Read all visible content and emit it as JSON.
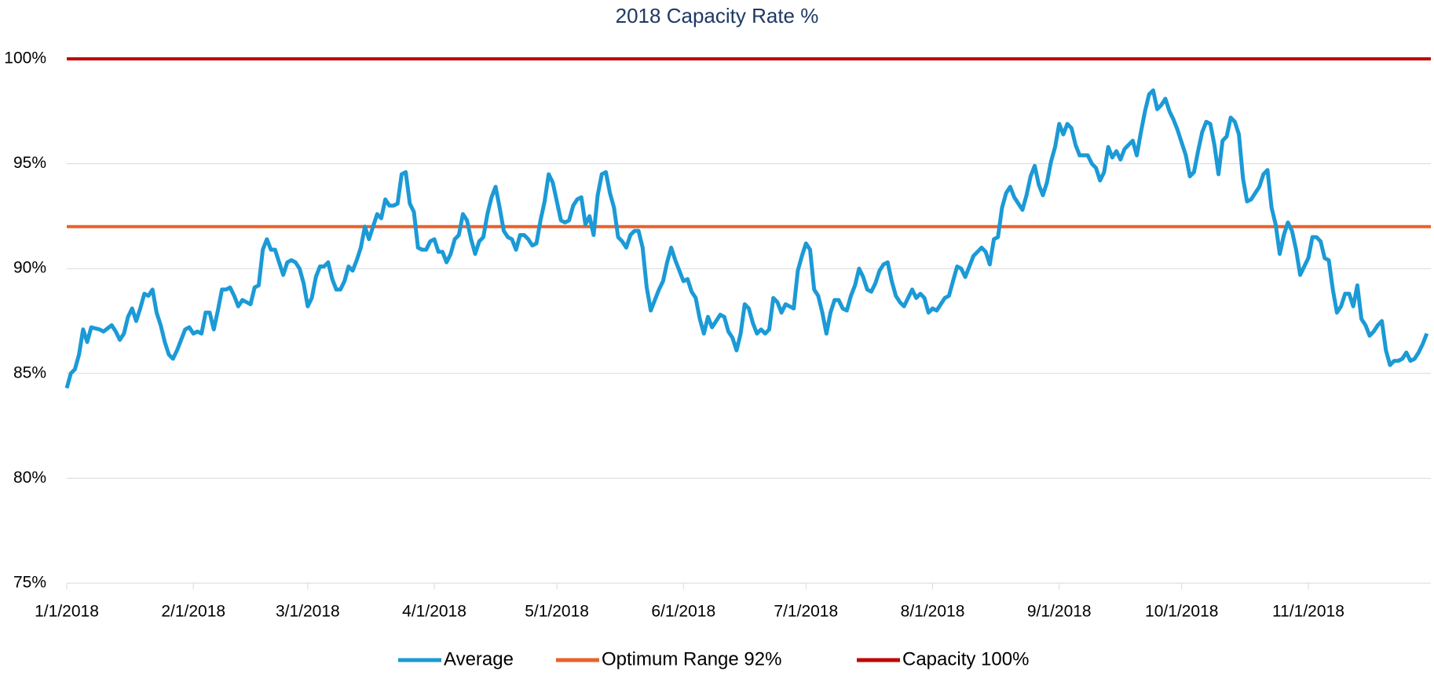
{
  "chart_data": {
    "type": "line",
    "title": "2018 Capacity Rate %",
    "x": [
      "1/1/2018",
      "1/2/2018",
      "1/3/2018",
      "1/4/2018",
      "1/5/2018",
      "1/6/2018",
      "1/7/2018",
      "1/9/2018",
      "1/10/2018",
      "1/12/2018",
      "1/13/2018",
      "1/14/2018",
      "1/15/2018",
      "1/16/2018",
      "1/17/2018",
      "1/18/2018",
      "1/19/2018",
      "1/20/2018",
      "1/21/2018",
      "1/22/2018",
      "1/23/2018",
      "1/24/2018",
      "1/25/2018",
      "1/26/2018",
      "1/27/2018",
      "1/28/2018",
      "1/29/2018",
      "1/30/2018",
      "1/31/2018",
      "2/1/2018",
      "2/2/2018",
      "2/3/2018",
      "2/4/2018",
      "2/5/2018",
      "2/6/2018",
      "2/7/2018",
      "2/8/2018",
      "2/9/2018",
      "2/10/2018",
      "2/11/2018",
      "2/12/2018",
      "2/13/2018",
      "2/14/2018",
      "2/15/2018",
      "2/16/2018",
      "2/17/2018",
      "2/18/2018",
      "2/19/2018",
      "2/20/2018",
      "2/21/2018",
      "2/22/2018",
      "2/23/2018",
      "2/24/2018",
      "2/25/2018",
      "2/26/2018",
      "2/27/2018",
      "2/28/2018",
      "3/1/2018",
      "3/2/2018",
      "3/3/2018",
      "3/4/2018",
      "3/5/2018",
      "3/6/2018",
      "3/7/2018",
      "3/8/2018",
      "3/9/2018",
      "3/10/2018",
      "3/11/2018",
      "3/12/2018",
      "3/13/2018",
      "3/14/2018",
      "3/15/2018",
      "3/16/2018",
      "3/17/2018",
      "3/18/2018",
      "3/19/2018",
      "3/20/2018",
      "3/21/2018",
      "3/22/2018",
      "3/23/2018",
      "3/24/2018",
      "3/25/2018",
      "3/26/2018",
      "3/27/2018",
      "3/28/2018",
      "3/29/2018",
      "3/30/2018",
      "3/31/2018",
      "4/1/2018",
      "4/2/2018",
      "4/3/2018",
      "4/4/2018",
      "4/5/2018",
      "4/6/2018",
      "4/7/2018",
      "4/8/2018",
      "4/9/2018",
      "4/10/2018",
      "4/11/2018",
      "4/12/2018",
      "4/13/2018",
      "4/14/2018",
      "4/15/2018",
      "4/16/2018",
      "4/17/2018",
      "4/18/2018",
      "4/19/2018",
      "4/20/2018",
      "4/21/2018",
      "4/22/2018",
      "4/23/2018",
      "4/24/2018",
      "4/25/2018",
      "4/26/2018",
      "4/27/2018",
      "4/28/2018",
      "4/29/2018",
      "4/30/2018",
      "5/1/2018",
      "5/2/2018",
      "5/3/2018",
      "5/4/2018",
      "5/5/2018",
      "5/6/2018",
      "5/7/2018",
      "5/8/2018",
      "5/9/2018",
      "5/10/2018",
      "5/11/2018",
      "5/12/2018",
      "5/13/2018",
      "5/14/2018",
      "5/15/2018",
      "5/16/2018",
      "5/17/2018",
      "5/18/2018",
      "5/19/2018",
      "5/20/2018",
      "5/21/2018",
      "5/22/2018",
      "5/23/2018",
      "5/24/2018",
      "5/25/2018",
      "5/26/2018",
      "5/27/2018",
      "5/28/2018",
      "5/29/2018",
      "5/30/2018",
      "5/31/2018",
      "6/1/2018",
      "6/2/2018",
      "6/3/2018",
      "6/4/2018",
      "6/5/2018",
      "6/6/2018",
      "6/7/2018",
      "6/8/2018",
      "6/9/2018",
      "6/10/2018",
      "6/11/2018",
      "6/12/2018",
      "6/13/2018",
      "6/14/2018",
      "6/15/2018",
      "6/16/2018",
      "6/17/2018",
      "6/18/2018",
      "6/19/2018",
      "6/20/2018",
      "6/21/2018",
      "6/22/2018",
      "6/23/2018",
      "6/24/2018",
      "6/25/2018",
      "6/26/2018",
      "6/27/2018",
      "6/28/2018",
      "6/29/2018",
      "6/30/2018",
      "7/1/2018",
      "7/2/2018",
      "7/3/2018",
      "7/4/2018",
      "7/5/2018",
      "7/6/2018",
      "7/7/2018",
      "7/8/2018",
      "7/9/2018",
      "7/10/2018",
      "7/11/2018",
      "7/12/2018",
      "7/13/2018",
      "7/14/2018",
      "7/15/2018",
      "7/16/2018",
      "7/17/2018",
      "7/18/2018",
      "7/19/2018",
      "7/20/2018",
      "7/21/2018",
      "7/22/2018",
      "7/23/2018",
      "7/24/2018",
      "7/25/2018",
      "7/26/2018",
      "7/27/2018",
      "7/28/2018",
      "7/29/2018",
      "7/30/2018",
      "7/31/2018",
      "8/1/2018",
      "8/2/2018",
      "8/3/2018",
      "8/4/2018",
      "8/5/2018",
      "8/6/2018",
      "8/7/2018",
      "8/8/2018",
      "8/9/2018",
      "8/10/2018",
      "8/11/2018",
      "8/12/2018",
      "8/13/2018",
      "8/14/2018",
      "8/15/2018",
      "8/16/2018",
      "8/17/2018",
      "8/18/2018",
      "8/19/2018",
      "8/20/2018",
      "8/21/2018",
      "8/22/2018",
      "8/23/2018",
      "8/24/2018",
      "8/25/2018",
      "8/26/2018",
      "8/27/2018",
      "8/28/2018",
      "8/29/2018",
      "8/30/2018",
      "8/31/2018",
      "9/1/2018",
      "9/2/2018",
      "9/3/2018",
      "9/4/2018",
      "9/5/2018",
      "9/6/2018",
      "9/7/2018",
      "9/8/2018",
      "9/9/2018",
      "9/10/2018",
      "9/11/2018",
      "9/12/2018",
      "9/13/2018",
      "9/14/2018",
      "9/15/2018",
      "9/16/2018",
      "9/17/2018",
      "9/18/2018",
      "9/19/2018",
      "9/20/2018",
      "9/21/2018",
      "9/22/2018",
      "9/23/2018",
      "9/24/2018",
      "9/25/2018",
      "9/26/2018",
      "9/27/2018",
      "9/28/2018",
      "9/29/2018",
      "9/30/2018",
      "10/1/2018",
      "10/2/2018",
      "10/3/2018",
      "10/4/2018",
      "10/5/2018",
      "10/6/2018",
      "10/7/2018",
      "10/8/2018",
      "10/9/2018",
      "10/10/2018",
      "10/11/2018",
      "10/12/2018",
      "10/13/2018",
      "10/14/2018",
      "10/15/2018",
      "10/16/2018",
      "10/17/2018",
      "10/18/2018",
      "10/19/2018",
      "10/20/2018",
      "10/21/2018",
      "10/22/2018",
      "10/23/2018",
      "10/24/2018",
      "10/25/2018",
      "10/26/2018",
      "10/27/2018",
      "10/28/2018",
      "10/29/2018",
      "10/30/2018",
      "10/31/2018",
      "11/1/2018",
      "11/2/2018",
      "11/3/2018",
      "11/4/2018",
      "11/5/2018",
      "11/6/2018",
      "11/7/2018",
      "11/8/2018",
      "11/9/2018",
      "11/10/2018",
      "11/11/2018",
      "11/12/2018",
      "11/13/2018",
      "11/14/2018",
      "11/15/2018",
      "11/16/2018",
      "11/17/2018",
      "11/18/2018",
      "11/19/2018",
      "11/20/2018",
      "11/21/2018",
      "11/22/2018",
      "11/23/2018",
      "11/24/2018",
      "11/25/2018",
      "11/26/2018",
      "11/27/2018",
      "11/28/2018",
      "11/29/2018",
      "11/30/2018"
    ],
    "series": [
      {
        "name": "Average",
        "color": "#1b9ad6",
        "values": [
          84.3,
          85.0,
          85.2,
          85.9,
          87.1,
          86.5,
          87.2,
          87.1,
          87.0,
          87.3,
          87.0,
          86.6,
          86.9,
          87.7,
          88.1,
          87.5,
          88.1,
          88.8,
          88.7,
          89.0,
          87.9,
          87.3,
          86.5,
          85.9,
          85.7,
          86.1,
          86.6,
          87.1,
          87.2,
          86.9,
          87.0,
          86.9,
          87.9,
          87.9,
          87.1,
          88.0,
          89.0,
          89.0,
          89.1,
          88.7,
          88.2,
          88.5,
          88.4,
          88.3,
          89.1,
          89.2,
          90.9,
          91.4,
          90.9,
          90.9,
          90.3,
          89.7,
          90.3,
          90.4,
          90.3,
          90.0,
          89.3,
          88.2,
          88.6,
          89.6,
          90.1,
          90.1,
          90.3,
          89.5,
          89.0,
          89.0,
          89.4,
          90.1,
          89.9,
          90.4,
          91.0,
          92.0,
          91.4,
          92.0,
          92.6,
          92.4,
          93.3,
          93.0,
          93.0,
          93.1,
          94.5,
          94.6,
          93.1,
          92.7,
          91.0,
          90.9,
          90.9,
          91.3,
          91.4,
          90.8,
          90.8,
          90.3,
          90.7,
          91.4,
          91.6,
          92.6,
          92.3,
          91.4,
          90.7,
          91.3,
          91.5,
          92.6,
          93.4,
          93.9,
          92.9,
          91.8,
          91.5,
          91.4,
          90.9,
          91.6,
          91.6,
          91.4,
          91.1,
          91.2,
          92.3,
          93.2,
          94.5,
          94.1,
          93.2,
          92.3,
          92.2,
          92.3,
          93.0,
          93.3,
          93.4,
          92.1,
          92.5,
          91.6,
          93.5,
          94.5,
          94.6,
          93.6,
          92.9,
          91.5,
          91.3,
          91.0,
          91.6,
          91.8,
          91.8,
          91.0,
          89.1,
          88.0,
          88.5,
          89.0,
          89.4,
          90.3,
          91.0,
          90.4,
          89.9,
          89.4,
          89.5,
          88.9,
          88.6,
          87.6,
          86.9,
          87.7,
          87.2,
          87.5,
          87.8,
          87.7,
          87.0,
          86.7,
          86.1,
          86.9,
          88.3,
          88.1,
          87.4,
          86.9,
          87.1,
          86.9,
          87.1,
          88.6,
          88.4,
          87.9,
          88.3,
          88.2,
          88.1,
          89.9,
          90.6,
          91.2,
          90.9,
          89.0,
          88.7,
          87.9,
          86.9,
          87.9,
          88.5,
          88.5,
          88.1,
          88.0,
          88.7,
          89.2,
          90.0,
          89.6,
          89.0,
          88.9,
          89.3,
          89.9,
          90.2,
          90.3,
          89.4,
          88.7,
          88.4,
          88.2,
          88.6,
          89.0,
          88.6,
          88.8,
          88.6,
          87.9,
          88.1,
          88.0,
          88.3,
          88.6,
          88.7,
          89.4,
          90.1,
          90.0,
          89.6,
          90.1,
          90.6,
          90.8,
          91.0,
          90.8,
          90.2,
          91.4,
          91.5,
          92.9,
          93.6,
          93.9,
          93.4,
          93.1,
          92.8,
          93.5,
          94.4,
          94.9,
          94.0,
          93.5,
          94.1,
          95.1,
          95.8,
          96.9,
          96.4,
          96.9,
          96.7,
          95.9,
          95.4,
          95.4,
          95.4,
          95.0,
          94.8,
          94.2,
          94.6,
          95.8,
          95.3,
          95.6,
          95.2,
          95.7,
          95.9,
          96.1,
          95.4,
          96.5,
          97.5,
          98.3,
          98.5,
          97.6,
          97.8,
          98.1,
          97.5,
          97.1,
          96.6,
          96.0,
          95.4,
          94.4,
          94.6,
          95.6,
          96.5,
          97.0,
          96.9,
          95.9,
          94.5,
          96.1,
          96.3,
          97.2,
          97.0,
          96.4,
          94.3,
          93.2,
          93.3,
          93.6,
          93.9,
          94.5,
          94.7,
          92.9,
          92.1,
          90.7,
          91.6,
          92.2,
          91.8,
          90.9,
          89.7,
          90.1,
          90.5,
          91.5,
          91.5,
          91.3,
          90.5,
          90.4,
          89.0,
          87.9,
          88.2,
          88.8,
          88.8,
          88.2,
          89.2,
          87.6,
          87.3,
          86.8,
          87.0,
          87.3,
          87.5,
          86.1,
          85.4,
          85.6,
          85.6,
          85.7,
          86.0,
          85.6,
          85.7,
          86.0,
          86.4,
          86.9
        ]
      },
      {
        "name": "Optimum Range 92%",
        "color": "#e8622a",
        "value": 92
      },
      {
        "name": "Capacity 100%",
        "color": "#c00000",
        "value": 100
      }
    ],
    "xlim": [
      "1/1/2018",
      "12/1/2018"
    ],
    "xticks": [
      "1/1/2018",
      "2/1/2018",
      "3/1/2018",
      "4/1/2018",
      "5/1/2018",
      "6/1/2018",
      "7/1/2018",
      "8/1/2018",
      "9/1/2018",
      "10/1/2018",
      "11/1/2018"
    ],
    "ylim": [
      75,
      100
    ],
    "yticks": [
      {
        "value": 75,
        "label": "75%"
      },
      {
        "value": 80,
        "label": "80%"
      },
      {
        "value": 85,
        "label": "85%"
      },
      {
        "value": 90,
        "label": "90%"
      },
      {
        "value": 95,
        "label": "95%"
      },
      {
        "value": 100,
        "label": "100%"
      }
    ],
    "grid": true,
    "legend": "bottom"
  }
}
